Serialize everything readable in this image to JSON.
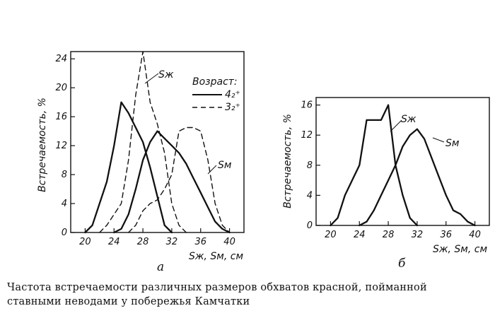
{
  "chart_data": [
    {
      "type": "line",
      "panel_label": "а",
      "xlabel": "Sж, Sм, см",
      "ylabel": "Встречаемость, %",
      "xlim": [
        18,
        42
      ],
      "ylim": [
        0,
        25
      ],
      "xticks": [
        20,
        24,
        28,
        32,
        36,
        40
      ],
      "yticks": [
        0,
        4,
        8,
        12,
        16,
        20,
        24
      ],
      "legend_title": "Возраст:",
      "legend": [
        "4₂⁺",
        "3₂⁺"
      ],
      "annotations": [
        "Sж",
        "Sм"
      ],
      "series": [
        {
          "legend": "4₂⁺",
          "annotation": "Sж",
          "style": "solid",
          "points": [
            [
              20,
              0
            ],
            [
              21,
              1
            ],
            [
              22,
              4
            ],
            [
              23,
              7
            ],
            [
              24,
              12
            ],
            [
              25,
              18
            ],
            [
              26,
              16.5
            ],
            [
              27,
              14.5
            ],
            [
              28,
              12.5
            ],
            [
              29,
              9
            ],
            [
              30,
              5
            ],
            [
              31,
              1
            ],
            [
              32,
              0
            ]
          ]
        },
        {
          "legend": "4₂⁺",
          "annotation": "Sм",
          "style": "solid",
          "points": [
            [
              24,
              0
            ],
            [
              25,
              0.5
            ],
            [
              26,
              2.5
            ],
            [
              27,
              6
            ],
            [
              28,
              10
            ],
            [
              29,
              12.5
            ],
            [
              30,
              14
            ],
            [
              31,
              13
            ],
            [
              32,
              12
            ],
            [
              33,
              11
            ],
            [
              34,
              9.5
            ],
            [
              35,
              7.5
            ],
            [
              36,
              5.5
            ],
            [
              37,
              3.5
            ],
            [
              38,
              1.5
            ],
            [
              39,
              0.5
            ],
            [
              40,
              0
            ]
          ]
        },
        {
          "legend": "3₂⁺",
          "annotation": "Sж",
          "style": "dashed",
          "points": [
            [
              22,
              0
            ],
            [
              23,
              1
            ],
            [
              24,
              2.5
            ],
            [
              25,
              4
            ],
            [
              26,
              10
            ],
            [
              27,
              19
            ],
            [
              28,
              25
            ],
            [
              29,
              18
            ],
            [
              30,
              15
            ],
            [
              31,
              11
            ],
            [
              32,
              4
            ],
            [
              33,
              1
            ],
            [
              34,
              0
            ]
          ]
        },
        {
          "legend": "3₂⁺",
          "annotation": "Sм",
          "style": "dashed",
          "points": [
            [
              26,
              0
            ],
            [
              27,
              1
            ],
            [
              28,
              3
            ],
            [
              29,
              4
            ],
            [
              30,
              4.5
            ],
            [
              31,
              6
            ],
            [
              32,
              8
            ],
            [
              33,
              14
            ],
            [
              34,
              14.5
            ],
            [
              35,
              14.5
            ],
            [
              36,
              14
            ],
            [
              37,
              10
            ],
            [
              38,
              4
            ],
            [
              39,
              1
            ],
            [
              40,
              0
            ]
          ]
        }
      ]
    },
    {
      "type": "line",
      "panel_label": "б",
      "xlabel": "Sж, Sм, см",
      "ylabel": "Встречаемость, %",
      "xlim": [
        18,
        42
      ],
      "ylim": [
        0,
        17
      ],
      "xticks": [
        20,
        24,
        28,
        32,
        36,
        40
      ],
      "yticks": [
        0,
        4,
        8,
        12,
        16
      ],
      "annotations": [
        "Sж",
        "Sм"
      ],
      "series": [
        {
          "annotation": "Sж",
          "style": "solid",
          "points": [
            [
              20,
              0
            ],
            [
              21,
              1
            ],
            [
              22,
              4
            ],
            [
              23,
              6
            ],
            [
              24,
              8
            ],
            [
              25,
              14
            ],
            [
              26,
              14
            ],
            [
              27,
              14
            ],
            [
              28,
              16
            ],
            [
              29,
              8
            ],
            [
              30,
              4
            ],
            [
              31,
              1
            ],
            [
              32,
              0
            ]
          ]
        },
        {
          "annotation": "Sм",
          "style": "solid",
          "points": [
            [
              24,
              0
            ],
            [
              25,
              0.5
            ],
            [
              26,
              2
            ],
            [
              27,
              4
            ],
            [
              28,
              6
            ],
            [
              29,
              8
            ],
            [
              30,
              10.5
            ],
            [
              31,
              12
            ],
            [
              32,
              12.8
            ],
            [
              33,
              11.5
            ],
            [
              34,
              9
            ],
            [
              35,
              6.5
            ],
            [
              36,
              4
            ],
            [
              37,
              2
            ],
            [
              38,
              1.5
            ],
            [
              39,
              0.5
            ],
            [
              40,
              0
            ]
          ]
        }
      ]
    }
  ],
  "caption": {
    "line1": "Частота встречаемости различных размеров обхватов красной, пойманной",
    "line2": "ставными неводами у побережья Камчатки"
  }
}
